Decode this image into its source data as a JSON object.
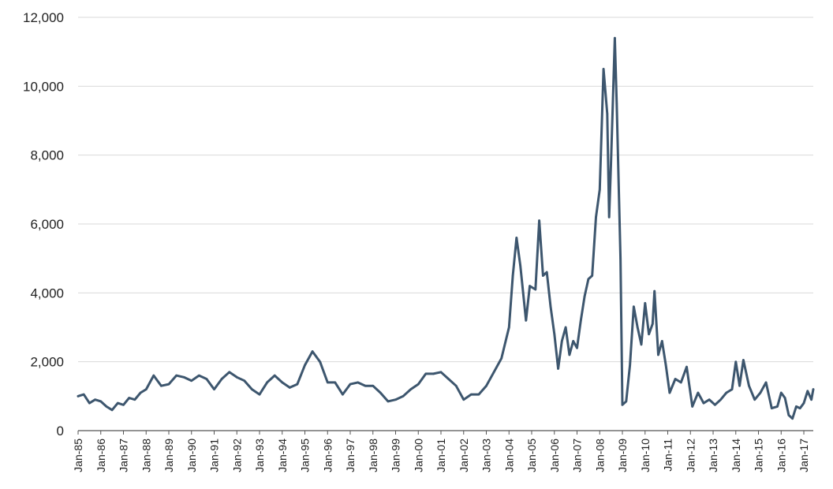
{
  "chart_data": {
    "type": "line",
    "title": "",
    "xlabel": "",
    "ylabel": "",
    "ylim": [
      0,
      12000
    ],
    "yticks": [
      0,
      2000,
      4000,
      6000,
      8000,
      10000,
      12000
    ],
    "ytick_labels": [
      "0",
      "2,000",
      "4,000",
      "6,000",
      "8,000",
      "10,000",
      "12,000"
    ],
    "grid": "horizontal",
    "legend": "none",
    "line_color": "#3d566e",
    "xlim": [
      "1985-01",
      "2017-06"
    ],
    "xticks": [
      "1985-01",
      "1986-01",
      "1987-01",
      "1988-01",
      "1989-01",
      "1990-01",
      "1991-01",
      "1992-01",
      "1993-01",
      "1994-01",
      "1995-01",
      "1996-01",
      "1997-01",
      "1998-01",
      "1999-01",
      "2000-01",
      "2001-01",
      "2002-01",
      "2003-01",
      "2004-01",
      "2005-01",
      "2006-01",
      "2007-01",
      "2008-01",
      "2009-01",
      "2010-01",
      "2011-01",
      "2012-01",
      "2013-01",
      "2014-01",
      "2015-01",
      "2016-01",
      "2017-01"
    ],
    "xtick_labels": [
      "Jan-85",
      "Jan-86",
      "Jan-87",
      "Jan-88",
      "Jan-89",
      "Jan-90",
      "Jan-91",
      "Jan-92",
      "Jan-93",
      "Jan-94",
      "Jan-95",
      "Jan-96",
      "Jan-97",
      "Jan-98",
      "Jan-99",
      "Jan-00",
      "Jan-01",
      "Jan-02",
      "Jan-03",
      "Jan-04",
      "Jan-05",
      "Jan-06",
      "Jan-07",
      "Jan-08",
      "Jan-09",
      "Jan-10",
      "Jan-11",
      "Jan-12",
      "Jan-13",
      "Jan-14",
      "Jan-15",
      "Jan-16",
      "Jan-17"
    ],
    "series": [
      {
        "points": [
          [
            "1985-01",
            1000
          ],
          [
            "1985-04",
            1050
          ],
          [
            "1985-07",
            800
          ],
          [
            "1985-10",
            900
          ],
          [
            "1986-01",
            850
          ],
          [
            "1986-04",
            700
          ],
          [
            "1986-07",
            600
          ],
          [
            "1986-10",
            800
          ],
          [
            "1987-01",
            750
          ],
          [
            "1987-04",
            950
          ],
          [
            "1987-07",
            900
          ],
          [
            "1987-10",
            1100
          ],
          [
            "1988-01",
            1200
          ],
          [
            "1988-05",
            1600
          ],
          [
            "1988-09",
            1300
          ],
          [
            "1989-01",
            1350
          ],
          [
            "1989-05",
            1600
          ],
          [
            "1989-09",
            1550
          ],
          [
            "1990-01",
            1450
          ],
          [
            "1990-05",
            1600
          ],
          [
            "1990-09",
            1500
          ],
          [
            "1991-01",
            1200
          ],
          [
            "1991-05",
            1500
          ],
          [
            "1991-09",
            1700
          ],
          [
            "1992-01",
            1550
          ],
          [
            "1992-05",
            1450
          ],
          [
            "1992-09",
            1200
          ],
          [
            "1993-01",
            1050
          ],
          [
            "1993-05",
            1400
          ],
          [
            "1993-09",
            1600
          ],
          [
            "1994-01",
            1400
          ],
          [
            "1994-05",
            1250
          ],
          [
            "1994-09",
            1350
          ],
          [
            "1995-01",
            1900
          ],
          [
            "1995-05",
            2300
          ],
          [
            "1995-09",
            2000
          ],
          [
            "1996-01",
            1400
          ],
          [
            "1996-05",
            1400
          ],
          [
            "1996-09",
            1050
          ],
          [
            "1997-01",
            1350
          ],
          [
            "1997-05",
            1400
          ],
          [
            "1997-09",
            1300
          ],
          [
            "1998-01",
            1300
          ],
          [
            "1998-05",
            1100
          ],
          [
            "1998-09",
            850
          ],
          [
            "1999-01",
            900
          ],
          [
            "1999-05",
            1000
          ],
          [
            "1999-09",
            1200
          ],
          [
            "2000-01",
            1350
          ],
          [
            "2000-05",
            1650
          ],
          [
            "2000-09",
            1650
          ],
          [
            "2001-01",
            1700
          ],
          [
            "2001-05",
            1500
          ],
          [
            "2001-09",
            1300
          ],
          [
            "2002-01",
            900
          ],
          [
            "2002-05",
            1050
          ],
          [
            "2002-09",
            1050
          ],
          [
            "2003-01",
            1300
          ],
          [
            "2003-05",
            1700
          ],
          [
            "2003-09",
            2100
          ],
          [
            "2004-01",
            3000
          ],
          [
            "2004-03",
            4500
          ],
          [
            "2004-05",
            5600
          ],
          [
            "2004-07",
            4800
          ],
          [
            "2004-10",
            3200
          ],
          [
            "2004-12",
            4200
          ],
          [
            "2005-03",
            4100
          ],
          [
            "2005-05",
            6100
          ],
          [
            "2005-07",
            4500
          ],
          [
            "2005-09",
            4600
          ],
          [
            "2005-11",
            3600
          ],
          [
            "2006-01",
            2800
          ],
          [
            "2006-03",
            1800
          ],
          [
            "2006-05",
            2600
          ],
          [
            "2006-07",
            3000
          ],
          [
            "2006-09",
            2200
          ],
          [
            "2006-11",
            2600
          ],
          [
            "2007-01",
            2400
          ],
          [
            "2007-03",
            3200
          ],
          [
            "2007-05",
            3900
          ],
          [
            "2007-07",
            4400
          ],
          [
            "2007-09",
            4500
          ],
          [
            "2007-11",
            6200
          ],
          [
            "2008-01",
            7000
          ],
          [
            "2008-03",
            10500
          ],
          [
            "2008-05",
            9200
          ],
          [
            "2008-06",
            6200
          ],
          [
            "2008-07",
            7800
          ],
          [
            "2008-09",
            11400
          ],
          [
            "2008-10",
            9500
          ],
          [
            "2008-12",
            5000
          ],
          [
            "2009-01",
            750
          ],
          [
            "2009-03",
            850
          ],
          [
            "2009-05",
            1900
          ],
          [
            "2009-07",
            3600
          ],
          [
            "2009-09",
            3000
          ],
          [
            "2009-11",
            2500
          ],
          [
            "2010-01",
            3700
          ],
          [
            "2010-03",
            2800
          ],
          [
            "2010-05",
            3100
          ],
          [
            "2010-06",
            4050
          ],
          [
            "2010-08",
            2200
          ],
          [
            "2010-10",
            2600
          ],
          [
            "2010-12",
            1900
          ],
          [
            "2011-02",
            1100
          ],
          [
            "2011-05",
            1500
          ],
          [
            "2011-08",
            1400
          ],
          [
            "2011-11",
            1850
          ],
          [
            "2012-02",
            700
          ],
          [
            "2012-05",
            1100
          ],
          [
            "2012-08",
            800
          ],
          [
            "2012-11",
            900
          ],
          [
            "2013-02",
            750
          ],
          [
            "2013-05",
            900
          ],
          [
            "2013-08",
            1100
          ],
          [
            "2013-11",
            1200
          ],
          [
            "2014-01",
            2000
          ],
          [
            "2014-03",
            1300
          ],
          [
            "2014-05",
            2050
          ],
          [
            "2014-08",
            1300
          ],
          [
            "2014-11",
            900
          ],
          [
            "2015-02",
            1100
          ],
          [
            "2015-05",
            1400
          ],
          [
            "2015-08",
            650
          ],
          [
            "2015-11",
            700
          ],
          [
            "2016-01",
            1100
          ],
          [
            "2016-03",
            950
          ],
          [
            "2016-05",
            450
          ],
          [
            "2016-07",
            350
          ],
          [
            "2016-09",
            700
          ],
          [
            "2016-11",
            650
          ],
          [
            "2017-01",
            800
          ],
          [
            "2017-03",
            1150
          ],
          [
            "2017-05",
            900
          ],
          [
            "2017-06",
            1200
          ]
        ]
      }
    ]
  }
}
